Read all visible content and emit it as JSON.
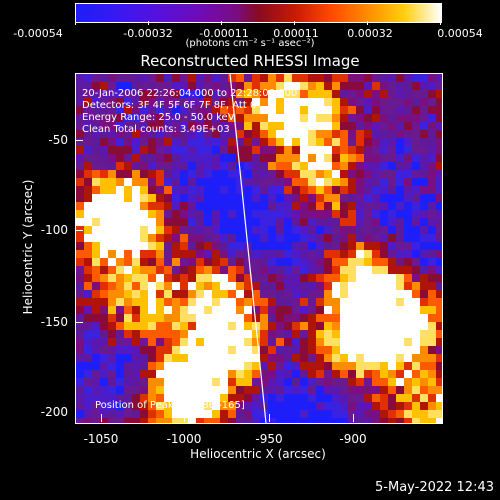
{
  "colorbar": {
    "tick_labels": [
      "-0.00054",
      "-0.00032",
      "-0.00011",
      "0.00011",
      "0.00032",
      "0.00054"
    ],
    "units": "(photons cm⁻² s⁻¹ asec⁻²)"
  },
  "title": "Reconstructed RHESSI Image",
  "annotations": {
    "time": "20-Jan-2006 22:26:04.000 to 22:28:00.000",
    "detectors": "Detectors: 3F 4F 5F 6F 7F 8F, Att 0",
    "energy": "Energy Range: 25.0 - 50.0 keV",
    "clean": "Clean     Total counts: 3.49E+03",
    "peak": "Position of Peak = [-986,-165]"
  },
  "axes": {
    "xlabel": "Heliocentric X (arcsec)",
    "ylabel": "Heliocentric Y (arcsec)",
    "x_ticks": [
      "-1050",
      "-1000",
      "-950",
      "-900"
    ],
    "y_ticks": [
      "-50",
      "-100",
      "-150",
      "-200"
    ]
  },
  "timestamp": "5-May-2022 12:43"
}
